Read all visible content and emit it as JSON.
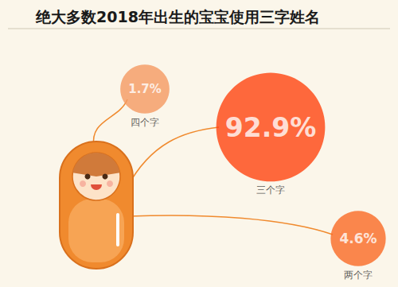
{
  "chart_data": {
    "type": "bubble",
    "title": "绝大多数2018年出生的宝宝使用三字姓名",
    "categories": [
      "四个字",
      "三个字",
      "两个字"
    ],
    "values": [
      1.7,
      92.9,
      4.6
    ],
    "value_labels": [
      "1.7%",
      "92.9%",
      "4.6%"
    ],
    "colors": [
      "#f59a62",
      "#ff4510",
      "#fa6a24"
    ],
    "data_labels": true,
    "tick_labels": false
  }
}
